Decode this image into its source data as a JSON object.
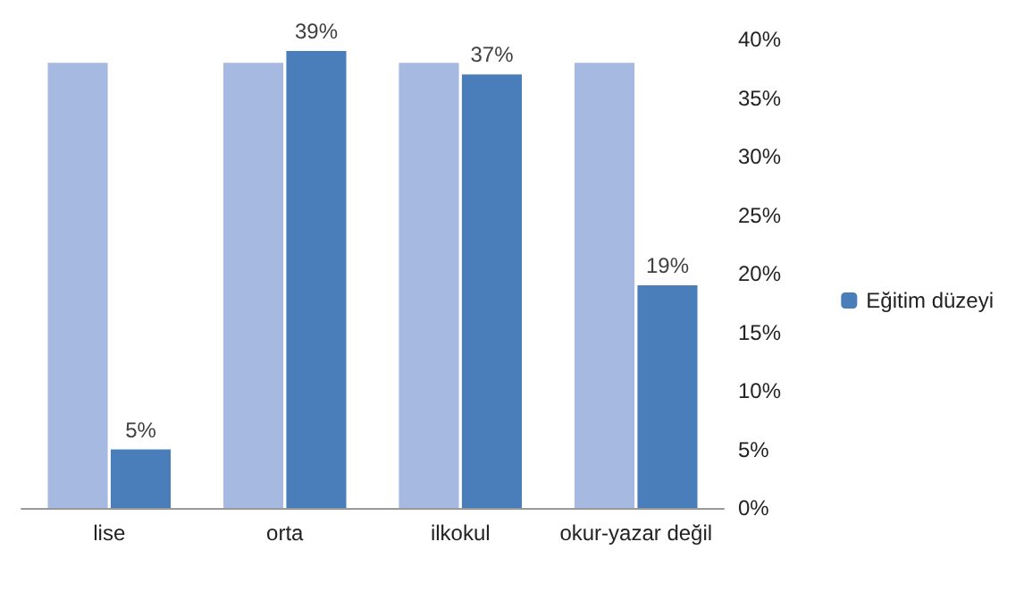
{
  "chart_data": {
    "type": "bar",
    "categories": [
      "lise",
      "orta",
      "ilkokul",
      "okur-yazar değil"
    ],
    "series": [
      {
        "color": "#a6b9e0",
        "values": [
          38,
          38,
          38,
          38
        ]
      },
      {
        "name": "Eğitim düzeyi",
        "color": "#4a7ebb",
        "values": [
          5,
          39,
          37,
          19
        ],
        "value_labels": [
          "5%",
          "39%",
          "37%",
          "19%"
        ]
      }
    ],
    "ylim": [
      0,
      40
    ],
    "yticks": [
      {
        "value": 0,
        "label": "0%"
      },
      {
        "value": 5,
        "label": "5%"
      },
      {
        "value": 10,
        "label": "10%"
      },
      {
        "value": 15,
        "label": "15%"
      },
      {
        "value": 20,
        "label": "20%"
      },
      {
        "value": 25,
        "label": "25%"
      },
      {
        "value": 30,
        "label": "30%"
      },
      {
        "value": 35,
        "label": "35%"
      },
      {
        "value": 40,
        "label": "40%"
      }
    ],
    "grid": false,
    "legend": "right"
  }
}
